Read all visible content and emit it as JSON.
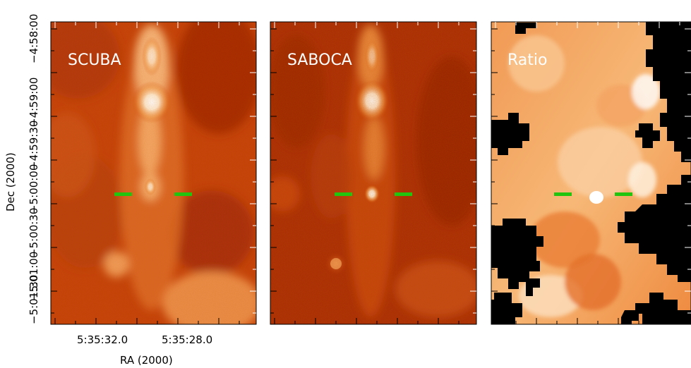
{
  "panels": [
    {
      "label": "SCUBA"
    },
    {
      "label": "SABOCA"
    },
    {
      "label": "Ratio"
    }
  ],
  "axes": {
    "x_title": "RA (2000)",
    "y_title": "Dec (2000)",
    "x_ticks": [
      "5:35:32.0",
      "5:35:28.0"
    ],
    "y_ticks": [
      "−4:58:00",
      "−4:59:00",
      "−4:59:30",
      "−5:00:00",
      "−5:00:30",
      "−5:01:00",
      "−5:01:30"
    ]
  },
  "colors": {
    "background": "#ffffff",
    "colormap_dark": "#8a1a00",
    "colormap_mid": "#d4520d",
    "colormap_bright": "#ffe7c8",
    "masked": "#000000",
    "marker": "#22c40f"
  }
}
